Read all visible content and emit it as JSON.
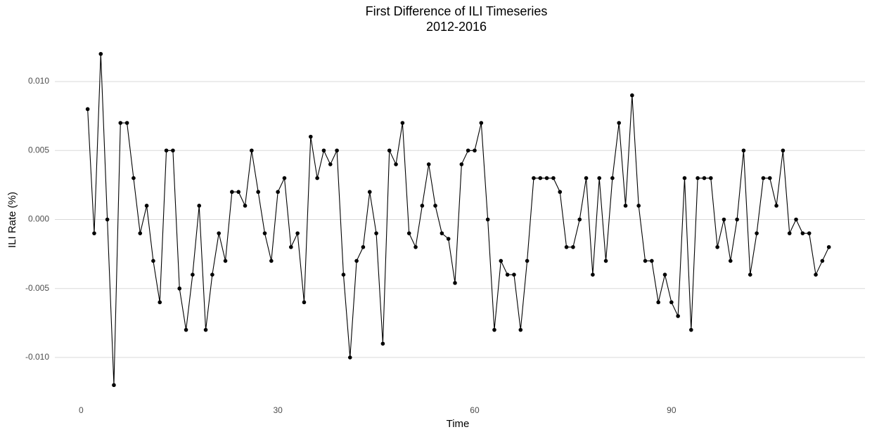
{
  "chart_data": {
    "type": "line",
    "title": [
      "First Difference of ILI Timeseries",
      "2012-2016"
    ],
    "x_label": "Time",
    "y_label": "ILI Rate (%)",
    "x": [
      1,
      2,
      3,
      4,
      5,
      6,
      7,
      8,
      9,
      10,
      11,
      12,
      13,
      14,
      15,
      16,
      17,
      18,
      19,
      20,
      21,
      22,
      23,
      24,
      25,
      26,
      27,
      28,
      29,
      30,
      31,
      32,
      33,
      34,
      35,
      36,
      37,
      38,
      39,
      40,
      41,
      42,
      43,
      44,
      45,
      46,
      47,
      48,
      49,
      50,
      51,
      52,
      53,
      54,
      55,
      56,
      57,
      58,
      59,
      60,
      61,
      62,
      63,
      64,
      65,
      66,
      67,
      68,
      69,
      70,
      71,
      72,
      73,
      74,
      75,
      76,
      77,
      78,
      79,
      80,
      81,
      82,
      83,
      84,
      85,
      86,
      87,
      88,
      89,
      90,
      91,
      92,
      93,
      94,
      95,
      96,
      97,
      98,
      99,
      100,
      101,
      102,
      103,
      104,
      105,
      106,
      107,
      108,
      109,
      110,
      111,
      112,
      113,
      114
    ],
    "values": [
      0.008,
      -0.001,
      0.012,
      0.0,
      -0.012,
      0.007,
      0.007,
      0.003,
      -0.001,
      0.001,
      -0.003,
      -0.006,
      0.005,
      0.005,
      -0.005,
      -0.008,
      -0.004,
      0.001,
      -0.008,
      -0.004,
      -0.001,
      -0.003,
      0.002,
      0.002,
      0.001,
      0.005,
      0.002,
      -0.001,
      -0.003,
      0.002,
      0.003,
      -0.002,
      -0.001,
      -0.006,
      0.006,
      0.003,
      0.005,
      0.004,
      0.005,
      -0.004,
      -0.01,
      -0.003,
      -0.002,
      0.002,
      -0.001,
      -0.009,
      0.005,
      0.004,
      0.007,
      -0.001,
      -0.002,
      0.001,
      0.004,
      0.001,
      -0.001,
      -0.0014,
      -0.0046,
      0.004,
      0.005,
      0.005,
      0.007,
      0.0,
      -0.008,
      -0.003,
      -0.004,
      -0.004,
      -0.008,
      -0.003,
      0.003,
      0.003,
      0.003,
      0.003,
      0.002,
      -0.002,
      -0.002,
      0.0,
      0.003,
      -0.004,
      0.003,
      -0.003,
      0.003,
      0.007,
      0.001,
      0.009,
      0.001,
      -0.003,
      -0.003,
      -0.006,
      -0.004,
      -0.006,
      -0.007,
      0.003,
      -0.008,
      0.003,
      0.003,
      0.003,
      -0.002,
      0.0,
      -0.003,
      0.0,
      0.005,
      -0.004,
      -0.001,
      0.003,
      0.003,
      0.001,
      0.005,
      -0.001,
      0.0,
      -0.001,
      -0.001,
      -0.004,
      -0.003,
      -0.002
    ],
    "color": "#000000",
    "xlim": [
      -4,
      119.5
    ],
    "ylim": [
      -0.0126,
      0.0126
    ],
    "xticks": [
      0,
      30,
      60,
      90
    ],
    "yticks": [
      {
        "value": -0.01,
        "label": "-0.010"
      },
      {
        "value": -0.005,
        "label": "-0.005"
      },
      {
        "value": 0,
        "label": "0.000"
      },
      {
        "value": 0.005,
        "label": "0.005"
      },
      {
        "value": 0.01,
        "label": "0.010"
      }
    ],
    "grid": true
  }
}
